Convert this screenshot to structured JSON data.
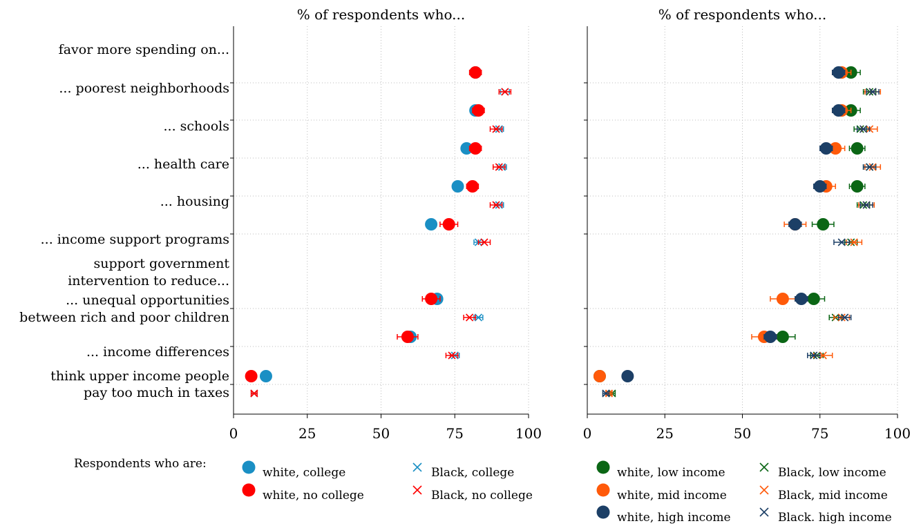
{
  "legend_title": "Respondents who are:",
  "chart_data": [
    {
      "type": "scatter",
      "title": "% of respondents who...",
      "xlim": [
        0,
        100
      ],
      "xticks": [
        0,
        25,
        50,
        75,
        100
      ],
      "grid": true,
      "rows": [
        {
          "label": "favor more spending on...",
          "header": true
        },
        {
          "label": "... poorest neighborhoods"
        },
        {
          "label": "... schools"
        },
        {
          "label": "... health care"
        },
        {
          "label": "... housing"
        },
        {
          "label": "... income support programs"
        },
        {
          "label": "support government intervention to reduce...",
          "lines": [
            "support government",
            "intervention to reduce..."
          ],
          "header": true
        },
        {
          "label": "... unequal opportunities between rich and poor children",
          "lines": [
            "... unequal opportunities",
            "between rich and poor children"
          ]
        },
        {
          "label": "... income differences"
        },
        {
          "label": "think upper income people pay too much in taxes",
          "lines": [
            "think upper income people",
            "pay too much in taxes"
          ]
        }
      ],
      "series": [
        {
          "name": "white, college",
          "marker": "circle",
          "color": "#1a8fc4",
          "values": [
            null,
            82,
            82,
            79,
            76,
            67,
            null,
            69,
            60,
            11
          ],
          "ci": [
            null,
            1.5,
            1.5,
            1.5,
            1.5,
            1.5,
            null,
            1.5,
            1.5,
            0
          ]
        },
        {
          "name": "white, no college",
          "marker": "circle",
          "color": "#ff0000",
          "values": [
            null,
            82,
            83,
            82,
            81,
            73,
            null,
            67,
            59,
            6
          ],
          "ci": [
            null,
            2,
            2,
            2,
            2,
            3,
            null,
            3,
            3.5,
            0
          ]
        },
        {
          "name": "Black, college",
          "marker": "x",
          "color": "#1a8fc4",
          "values": [
            null,
            92,
            90,
            91,
            90,
            83,
            null,
            83,
            75,
            7
          ],
          "ci": [
            null,
            1.5,
            1.5,
            1.5,
            1.5,
            1.5,
            null,
            1.5,
            1.5,
            1
          ]
        },
        {
          "name": "Black, no college",
          "marker": "x",
          "color": "#ff0000",
          "values": [
            null,
            92,
            89,
            90,
            89,
            85,
            null,
            80,
            74,
            7
          ],
          "ci": [
            null,
            2,
            2,
            2,
            2,
            2,
            null,
            2,
            2,
            1
          ]
        }
      ]
    },
    {
      "type": "scatter",
      "title": "% of respondents who...",
      "xlim": [
        0,
        100
      ],
      "xticks": [
        0,
        25,
        50,
        75,
        100
      ],
      "grid": true,
      "series": [
        {
          "name": "white, low income",
          "marker": "circle",
          "color": "#0b6615",
          "values": [
            null,
            85,
            85,
            87,
            87,
            76,
            null,
            73,
            63,
            4
          ],
          "ci": [
            null,
            3,
            3,
            2.5,
            2.5,
            3.5,
            null,
            3.5,
            4,
            0
          ]
        },
        {
          "name": "white, mid income",
          "marker": "circle",
          "color": "#ff5a0a",
          "values": [
            null,
            82,
            82,
            80,
            77,
            67,
            null,
            63,
            57,
            4
          ],
          "ci": [
            null,
            3,
            3,
            3,
            3,
            3.5,
            null,
            4,
            4,
            1
          ]
        },
        {
          "name": "white, high income",
          "marker": "circle",
          "color": "#1c3f66",
          "values": [
            null,
            81,
            81,
            77,
            75,
            67,
            null,
            69,
            59,
            13
          ],
          "ci": [
            null,
            2,
            2,
            2,
            2,
            2,
            null,
            2,
            2,
            0
          ]
        },
        {
          "name": "Black, low income",
          "marker": "x",
          "color": "#0b6615",
          "values": [
            null,
            91,
            88,
            91,
            89,
            85,
            null,
            80,
            74,
            8
          ],
          "ci": [
            null,
            2,
            2,
            2,
            2,
            2,
            null,
            2,
            2,
            1
          ]
        },
        {
          "name": "Black, mid income",
          "marker": "x",
          "color": "#ff5a0a",
          "values": [
            null,
            92,
            91,
            92,
            90,
            86,
            null,
            82,
            76,
            7
          ],
          "ci": [
            null,
            2.5,
            2.5,
            2.5,
            2.5,
            2.5,
            null,
            2.5,
            3,
            1
          ]
        },
        {
          "name": "Black. high income",
          "marker": "x",
          "color": "#1c3f66",
          "values": [
            null,
            92,
            89,
            91,
            90,
            82,
            null,
            83,
            73,
            6
          ],
          "ci": [
            null,
            2,
            2,
            2,
            2,
            2.5,
            null,
            2,
            2,
            1
          ]
        }
      ]
    }
  ]
}
